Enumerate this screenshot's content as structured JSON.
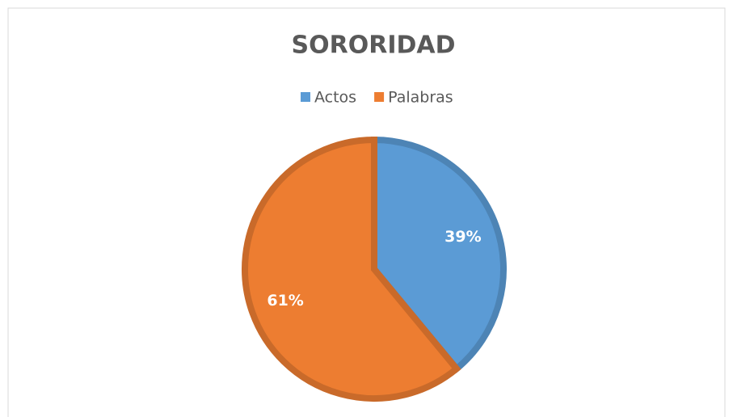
{
  "chart_data": {
    "type": "pie",
    "title": "SORORIDAD",
    "categories": [
      "Actos",
      "Palabras"
    ],
    "values": [
      39,
      61
    ],
    "value_labels": [
      "39%",
      "61%"
    ],
    "colors": [
      "#5b9bd5",
      "#ed7d31"
    ],
    "legend": "top"
  }
}
